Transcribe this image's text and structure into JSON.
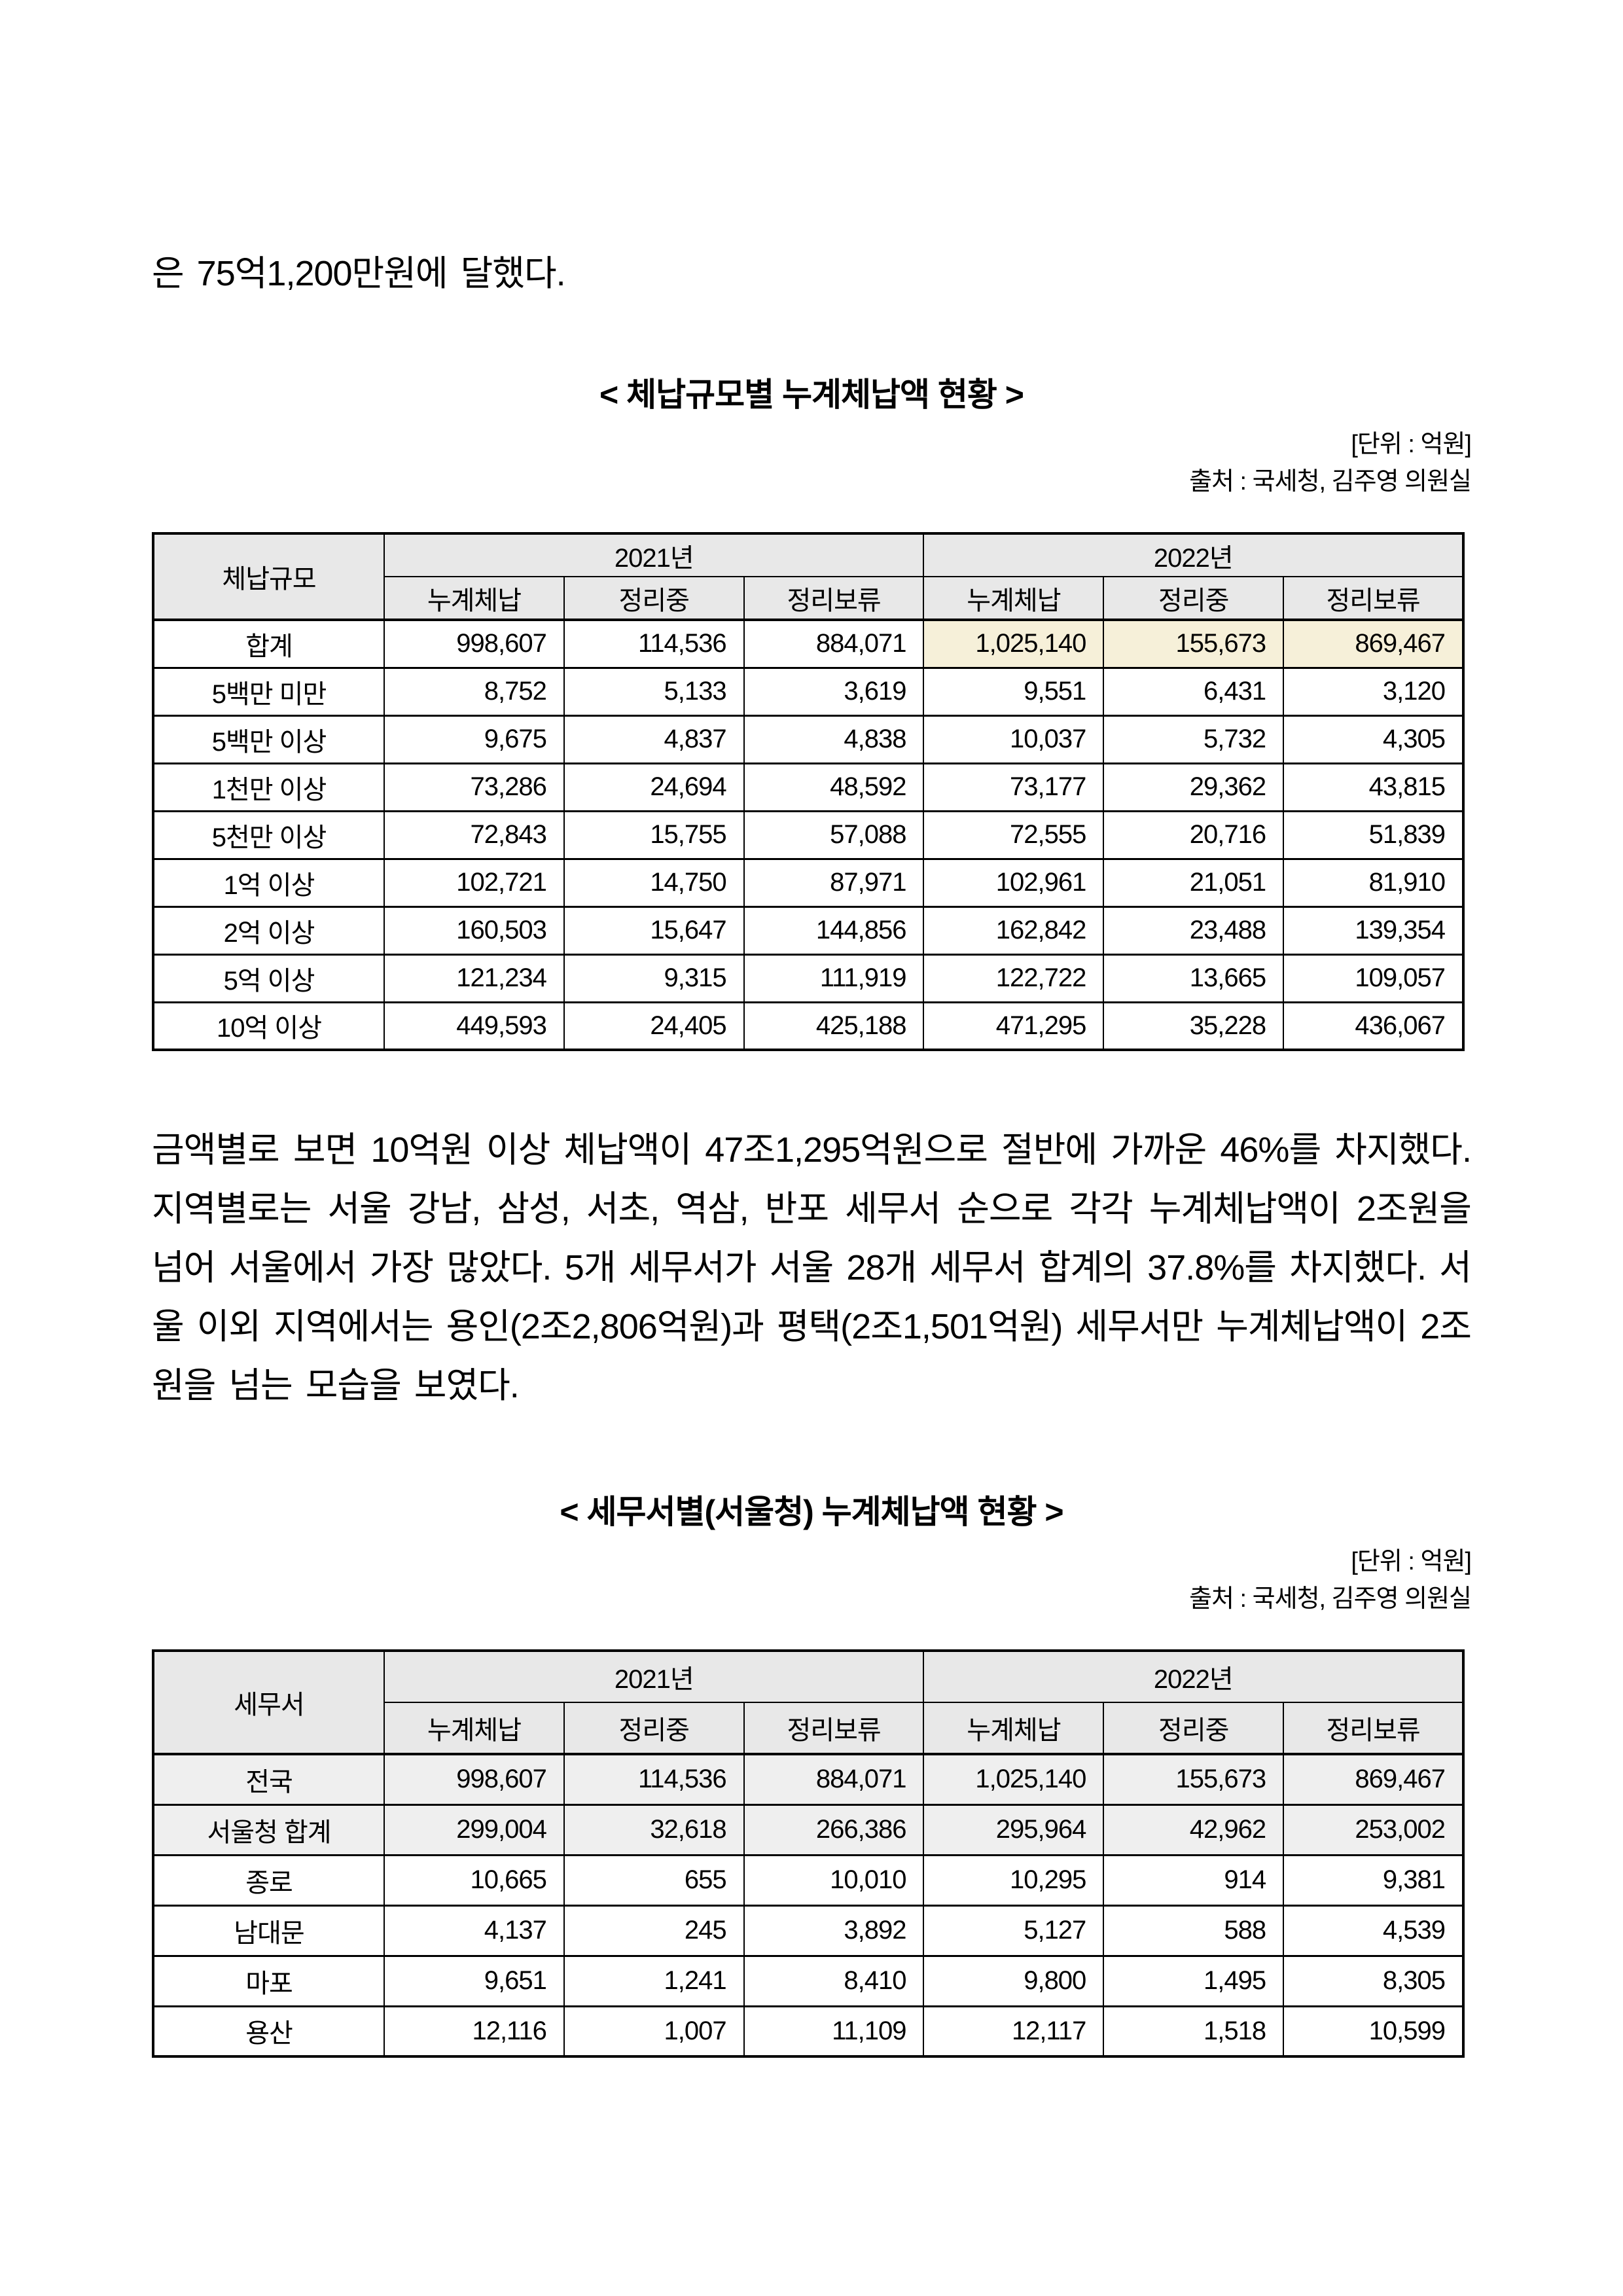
{
  "colors": {
    "header_bg": "#e8e8e8",
    "highlight_bg": "#f6f0d9",
    "shaded_row_bg": "#efefef",
    "border": "#000000",
    "text": "#000000",
    "page_bg": "#ffffff"
  },
  "page": {
    "intro_text": "은 75억1,200만원에 달했다.",
    "analysis_paragraph": "금액별로 보면 10억원 이상 체납액이 47조1,295억원으로 절반에 가까운 46%를 차지했다. 지역별로는 서울 강남, 삼성, 서초, 역삼, 반포 세무서 순으로 각각 누계체납액이 2조원을 넘어 서울에서 가장 많았다. 5개 세무서가 서울 28개 세무서 합계의 37.8%를 차지했다. 서울 이외 지역에서는 용인(2조2,806억원)과 평택(2조1,501억원) 세무서만 누계체납액이 2조원을 넘는 모습을 보였다."
  },
  "table1": {
    "title": "< 체납규모별 누계체납액 현황 >",
    "unit_note": "[단위 : 억원]",
    "source_note": "출처 : 국세청, 김주영 의원실",
    "corner_header": "체납규모",
    "year_headers": [
      "2021년",
      "2022년"
    ],
    "sub_headers": [
      "누계체납",
      "정리중",
      "정리보류",
      "누계체납",
      "정리중",
      "정리보류"
    ],
    "rows": [
      {
        "label": "합계",
        "values": [
          "998,607",
          "114,536",
          "884,071",
          "1,025,140",
          "155,673",
          "869,467"
        ],
        "highlight": [
          3,
          4,
          5
        ]
      },
      {
        "label": "5백만 미만",
        "values": [
          "8,752",
          "5,133",
          "3,619",
          "9,551",
          "6,431",
          "3,120"
        ]
      },
      {
        "label": "5백만 이상",
        "values": [
          "9,675",
          "4,837",
          "4,838",
          "10,037",
          "5,732",
          "4,305"
        ]
      },
      {
        "label": "1천만 이상",
        "values": [
          "73,286",
          "24,694",
          "48,592",
          "73,177",
          "29,362",
          "43,815"
        ]
      },
      {
        "label": "5천만 이상",
        "values": [
          "72,843",
          "15,755",
          "57,088",
          "72,555",
          "20,716",
          "51,839"
        ]
      },
      {
        "label": "1억 이상",
        "values": [
          "102,721",
          "14,750",
          "87,971",
          "102,961",
          "21,051",
          "81,910"
        ]
      },
      {
        "label": "2억 이상",
        "values": [
          "160,503",
          "15,647",
          "144,856",
          "162,842",
          "23,488",
          "139,354"
        ]
      },
      {
        "label": "5억 이상",
        "values": [
          "121,234",
          "9,315",
          "111,919",
          "122,722",
          "13,665",
          "109,057"
        ]
      },
      {
        "label": "10억 이상",
        "values": [
          "449,593",
          "24,405",
          "425,188",
          "471,295",
          "35,228",
          "436,067"
        ]
      }
    ]
  },
  "table2": {
    "title": "< 세무서별(서울청) 누계체납액 현황 >",
    "unit_note": "[단위 : 억원]",
    "source_note": "출처 : 국세청, 김주영 의원실",
    "corner_header": "세무서",
    "year_headers": [
      "2021년",
      "2022년"
    ],
    "sub_headers": [
      "누계체납",
      "정리중",
      "정리보류",
      "누계체납",
      "정리중",
      "정리보류"
    ],
    "rows": [
      {
        "label": "전국",
        "values": [
          "998,607",
          "114,536",
          "884,071",
          "1,025,140",
          "155,673",
          "869,467"
        ],
        "shaded": true
      },
      {
        "label": "서울청 합계",
        "values": [
          "299,004",
          "32,618",
          "266,386",
          "295,964",
          "42,962",
          "253,002"
        ],
        "shaded": true
      },
      {
        "label": "종로",
        "values": [
          "10,665",
          "655",
          "10,010",
          "10,295",
          "914",
          "9,381"
        ]
      },
      {
        "label": "남대문",
        "values": [
          "4,137",
          "245",
          "3,892",
          "5,127",
          "588",
          "4,539"
        ]
      },
      {
        "label": "마포",
        "values": [
          "9,651",
          "1,241",
          "8,410",
          "9,800",
          "1,495",
          "8,305"
        ]
      },
      {
        "label": "용산",
        "values": [
          "12,116",
          "1,007",
          "11,109",
          "12,117",
          "1,518",
          "10,599"
        ]
      }
    ]
  }
}
